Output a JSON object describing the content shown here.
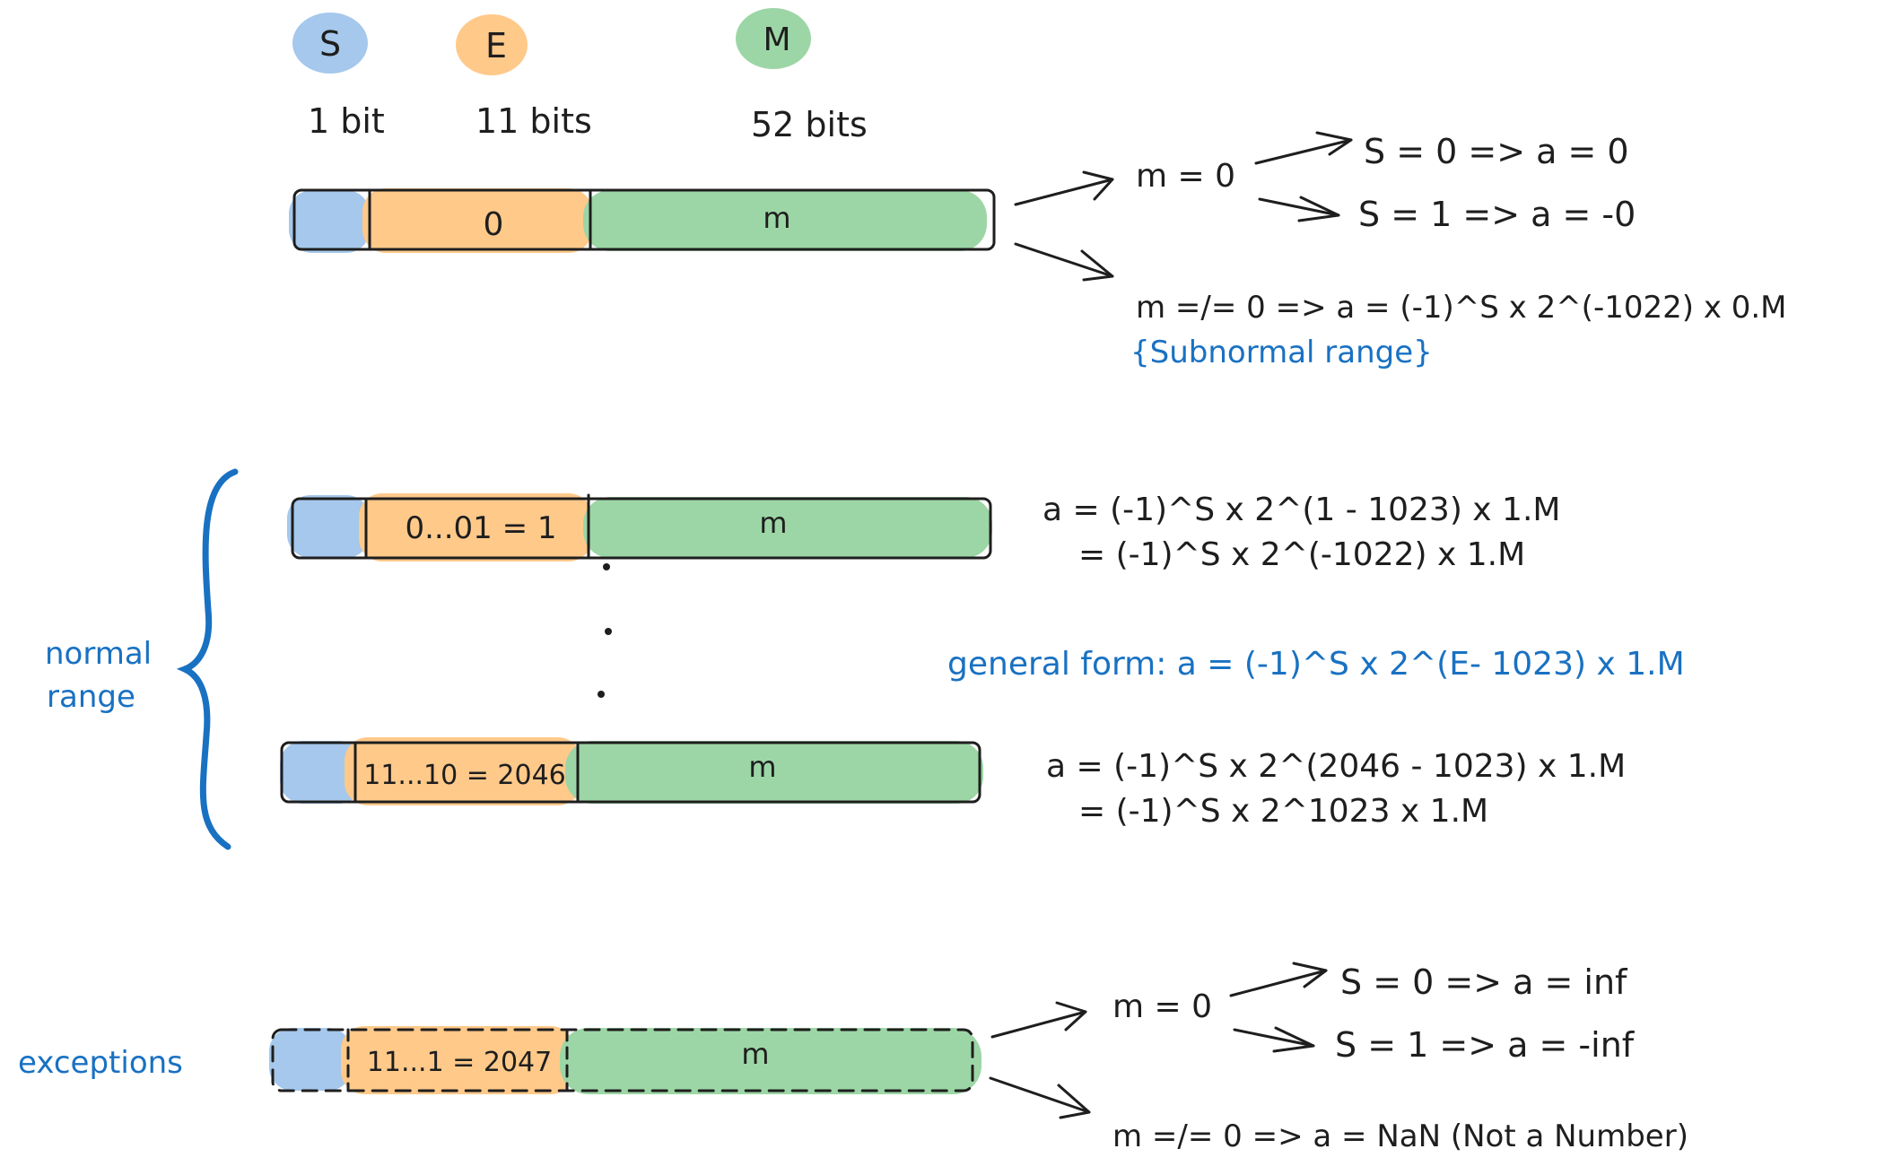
{
  "legend": {
    "s_label": "S",
    "e_label": "E",
    "m_label": "M",
    "s_bits": "1 bit",
    "e_bits": "11 bits",
    "m_bits": "52 bits"
  },
  "subnormal": {
    "exponent": "0",
    "mantissa": "m",
    "m_zero": "m = 0",
    "s0": "S = 0 => a = 0",
    "s1": "S = 1 => a = -0",
    "m_nonzero": "m =/= 0 => a = (-1)^S x 2^(-1022) x 0.M",
    "note": "{Subnormal range}"
  },
  "normal": {
    "label_line1": "normal",
    "label_line2": "range",
    "low_exponent": "0...01 = 1",
    "low_mantissa": "m",
    "low_eq1": "a = (-1)^S x 2^(1 - 1023) x 1.M",
    "low_eq2": "= (-1)^S x 2^(-1022) x 1.M",
    "general": "general form: a = (-1)^S x 2^(E- 1023) x 1.M",
    "high_exponent": "11...10 = 2046",
    "high_mantissa": "m",
    "high_eq1": "a = (-1)^S x 2^(2046 - 1023) x 1.M",
    "high_eq2": "= (-1)^S x 2^1023 x 1.M"
  },
  "exceptions": {
    "label": "exceptions",
    "exponent": "11...1 = 2047",
    "mantissa": "m",
    "m_zero": "m = 0",
    "s0": "S = 0 => a = inf",
    "s1": "S = 1 => a = -inf",
    "m_nonzero": "m =/= 0 => a = NaN (Not a Number)"
  },
  "colors": {
    "sign": "#a5c8ec",
    "exponent": "#ffc98a",
    "mantissa": "#9dd6a6",
    "annotation": "#1971c2",
    "ink": "#1e1e1e"
  }
}
